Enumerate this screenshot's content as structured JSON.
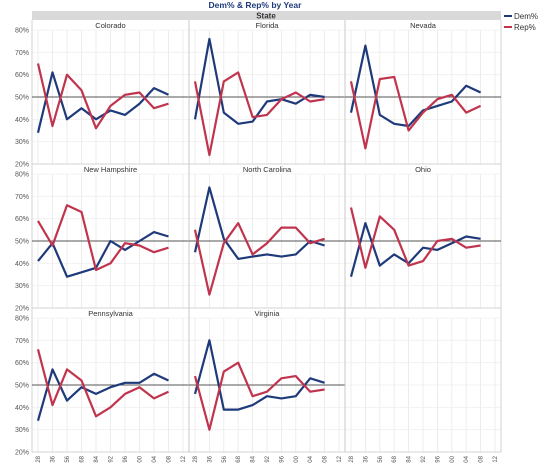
{
  "chart_data": {
    "type": "line",
    "title": "Dem% & Rep% by Year",
    "facet_header": "State",
    "x": [
      1928,
      1936,
      1956,
      1968,
      1984,
      1992,
      1996,
      2000,
      2004,
      2008,
      2012
    ],
    "x_tick_labels": [
      "1928",
      "1936",
      "1956",
      "1968",
      "1984",
      "1992",
      "1996",
      "2000",
      "2004",
      "2008",
      "2012"
    ],
    "y_ticks": [
      20,
      30,
      40,
      50,
      60,
      70,
      80
    ],
    "y_tick_labels": [
      "20%",
      "30%",
      "40%",
      "50%",
      "60%",
      "70%",
      "80%"
    ],
    "ylim": [
      20,
      80
    ],
    "reference_line": 50,
    "grid": true,
    "legend": {
      "position": "top-right",
      "entries": [
        {
          "name": "Dem%",
          "color": "#1f3a7a"
        },
        {
          "name": "Rep%",
          "color": "#c0344e"
        }
      ]
    },
    "panels": [
      {
        "state": "Colorado",
        "dem": [
          34,
          61,
          40,
          45,
          40,
          44,
          42,
          47,
          54,
          51,
          null
        ],
        "rep": [
          65,
          37,
          60,
          53,
          36,
          46,
          51,
          52,
          45,
          47,
          null
        ]
      },
      {
        "state": "Florida",
        "dem": [
          40,
          76,
          43,
          38,
          39,
          48,
          49,
          47,
          51,
          50,
          null
        ],
        "rep": [
          57,
          24,
          57,
          61,
          41,
          42,
          49,
          52,
          48,
          49,
          null
        ]
      },
      {
        "state": "Nevada",
        "dem": [
          43,
          73,
          42,
          38,
          37,
          44,
          46,
          48,
          55,
          52,
          null
        ],
        "rep": [
          57,
          27,
          58,
          59,
          35,
          43,
          49,
          51,
          43,
          46,
          null
        ]
      },
      {
        "state": "New Hampshire",
        "dem": [
          41,
          49,
          34,
          36,
          38,
          50,
          46,
          50,
          54,
          52,
          null
        ],
        "rep": [
          59,
          48,
          66,
          63,
          37,
          40,
          49,
          48,
          45,
          47,
          null
        ]
      },
      {
        "state": "North Carolina",
        "dem": [
          45,
          74,
          51,
          42,
          43,
          44,
          43,
          44,
          50,
          48,
          null
        ],
        "rep": [
          55,
          26,
          49,
          58,
          44,
          49,
          56,
          56,
          49,
          51,
          null
        ]
      },
      {
        "state": "Ohio",
        "dem": [
          34,
          58,
          39,
          44,
          40,
          47,
          46,
          49,
          52,
          51,
          null
        ],
        "rep": [
          65,
          38,
          61,
          55,
          39,
          41,
          50,
          51,
          47,
          48,
          null
        ]
      },
      {
        "state": "Pennsylvania",
        "dem": [
          34,
          57,
          43,
          49,
          46,
          49,
          51,
          51,
          55,
          52,
          null
        ],
        "rep": [
          66,
          41,
          57,
          52,
          36,
          40,
          46,
          49,
          44,
          47,
          null
        ]
      },
      {
        "state": "Virginia",
        "dem": [
          46,
          70,
          39,
          39,
          41,
          45,
          44,
          45,
          53,
          51,
          null
        ],
        "rep": [
          54,
          30,
          56,
          60,
          45,
          47,
          53,
          54,
          47,
          48,
          null
        ]
      }
    ]
  }
}
